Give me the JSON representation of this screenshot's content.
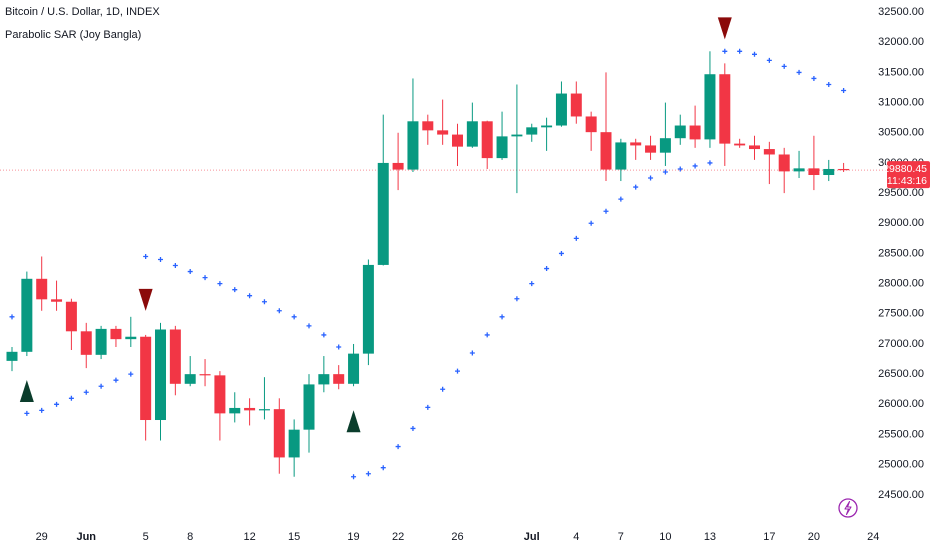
{
  "chart_data": {
    "type": "candlestick",
    "title": "Bitcoin / U.S. Dollar, 1D, INDEX",
    "categories": [
      null,
      null,
      "29",
      null,
      null,
      "Jun",
      null,
      null,
      null,
      "5",
      null,
      null,
      "8",
      null,
      null,
      null,
      "12",
      null,
      null,
      "15",
      null,
      null,
      null,
      "19",
      null,
      null,
      "22",
      null,
      null,
      null,
      "26",
      null,
      null,
      null,
      null,
      "Jul",
      null,
      null,
      "4",
      null,
      null,
      "7",
      null,
      null,
      "10",
      null,
      null,
      "13",
      null,
      null,
      null,
      "17",
      null,
      null,
      "20",
      null,
      null,
      null,
      "24"
    ],
    "open": [
      26720,
      26870,
      28080,
      27740,
      27700,
      27210,
      26820,
      27250,
      27080,
      27120,
      25740,
      27240,
      26340,
      26500,
      26480,
      25850,
      25940,
      25900,
      25920,
      25120,
      25580,
      26330,
      26500,
      26340,
      26840,
      28310,
      30000,
      29890,
      30690,
      30540,
      30470,
      30270,
      30690,
      30080,
      30440,
      30470,
      30590,
      30620,
      31150,
      30770,
      30510,
      29890,
      30340,
      30290,
      30170,
      30410,
      30620,
      30390,
      31470,
      30320,
      30290,
      30230,
      30140,
      29860,
      29910,
      29800,
      29900,
      null,
      null
    ],
    "high": [
      26950,
      28200,
      28450,
      28050,
      27750,
      27350,
      27300,
      27300,
      27450,
      27150,
      27350,
      27300,
      26800,
      26750,
      26550,
      26200,
      26100,
      26450,
      26100,
      25750,
      26500,
      26800,
      26650,
      27000,
      28400,
      30800,
      30500,
      31400,
      30800,
      31050,
      30650,
      31000,
      30700,
      30850,
      31300,
      30650,
      30750,
      31350,
      31350,
      30850,
      31500,
      30400,
      30400,
      30450,
      31000,
      30800,
      30950,
      31850,
      31650,
      30400,
      30450,
      30350,
      30250,
      30200,
      30450,
      30050,
      30000,
      null,
      null
    ],
    "low": [
      26550,
      26800,
      27550,
      27550,
      26900,
      26600,
      26750,
      26950,
      26950,
      25400,
      25400,
      26150,
      26300,
      26300,
      25400,
      25700,
      25650,
      25750,
      24850,
      24800,
      25200,
      26200,
      26250,
      26300,
      26650,
      28300,
      29550,
      29850,
      30300,
      30300,
      29950,
      30250,
      29900,
      30050,
      29500,
      30350,
      30200,
      30600,
      30650,
      30200,
      29700,
      29700,
      30050,
      30050,
      29950,
      30300,
      30250,
      30250,
      29950,
      30250,
      30050,
      29650,
      29500,
      29750,
      29550,
      29700,
      29850,
      null,
      null
    ],
    "close": [
      26870,
      28080,
      27740,
      27700,
      27210,
      26820,
      27250,
      27080,
      27120,
      25740,
      27240,
      26340,
      26500,
      26480,
      25850,
      25940,
      25900,
      25920,
      25120,
      25580,
      26330,
      26500,
      26340,
      26840,
      28310,
      30000,
      29890,
      30690,
      30540,
      30470,
      30270,
      30690,
      30080,
      30440,
      30470,
      30590,
      30620,
      31150,
      30770,
      30510,
      29890,
      30340,
      30290,
      30170,
      30410,
      30620,
      30390,
      31470,
      30320,
      30290,
      30230,
      30140,
      29860,
      29910,
      29800,
      29900,
      29880,
      null,
      null
    ],
    "up_color": "#089981",
    "down_color": "#f23645",
    "indicator": {
      "name": "Parabolic SAR (Joy Bangla)",
      "color": "#2962ff",
      "buy_color": "#0b3d2c",
      "sell_color": "#8b0a0a",
      "values": [
        27450,
        25850,
        25900,
        26000,
        26100,
        26200,
        26300,
        26400,
        26500,
        28450,
        28400,
        28300,
        28200,
        28100,
        28000,
        27900,
        27800,
        27700,
        27550,
        27450,
        27300,
        27150,
        26950,
        24800,
        24850,
        24950,
        25300,
        25600,
        25950,
        26250,
        26550,
        26850,
        27150,
        27450,
        27750,
        28000,
        28250,
        28500,
        28750,
        29000,
        29200,
        29400,
        29600,
        29750,
        29850,
        29900,
        29950,
        30000,
        31850,
        31850,
        31800,
        31700,
        31600,
        31500,
        31400,
        31300,
        31200,
        null,
        null
      ]
    },
    "last_price": {
      "value": 29880.45,
      "label": "29880.45",
      "color": "#f23645"
    },
    "countdown": "11:43:16",
    "ylim": [
      24050,
      32700
    ],
    "yticks": [
      {
        "value": 24500,
        "label": "24500.00"
      },
      {
        "value": 25000,
        "label": "25000.00"
      },
      {
        "value": 25500,
        "label": "25500.00"
      },
      {
        "value": 26000,
        "label": "26000.00"
      },
      {
        "value": 26500,
        "label": "26500.00"
      },
      {
        "value": 27000,
        "label": "27000.00"
      },
      {
        "value": 27500,
        "label": "27500.00"
      },
      {
        "value": 28000,
        "label": "28000.00"
      },
      {
        "value": 28500,
        "label": "28500.00"
      },
      {
        "value": 29000,
        "label": "29000.00"
      },
      {
        "value": 29500,
        "label": "29500.00"
      },
      {
        "value": 30000,
        "label": "30000.00"
      },
      {
        "value": 30500,
        "label": "30500.00"
      },
      {
        "value": 31000,
        "label": "31000.00"
      },
      {
        "value": 31500,
        "label": "31500.00"
      },
      {
        "value": 32000,
        "label": "32000.00"
      },
      {
        "value": 32500,
        "label": "32500.00"
      }
    ],
    "grid": false
  }
}
